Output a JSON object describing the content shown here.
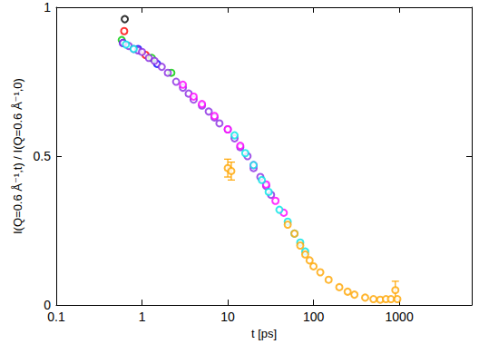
{
  "chart_data": {
    "type": "scatter",
    "x_label": "t [ps]",
    "y_label": "I(Q=0.6 Å⁻¹,t) / I(Q=0.6 Å⁻¹,0)",
    "log": "x",
    "grid": false,
    "marker": "open circle",
    "xlim": [
      0.1,
      7000
    ],
    "xticks": [
      0.1,
      1,
      10,
      100,
      1000
    ],
    "ylim": [
      0,
      1
    ],
    "yticks": [
      0,
      0.5,
      1
    ],
    "series": [
      {
        "color": "#000000",
        "x": [
          0.63
        ],
        "values": [
          0.96
        ]
      },
      {
        "color": "#ff0000",
        "x": [
          0.62,
          1.1
        ],
        "values": [
          0.92,
          0.84
        ]
      },
      {
        "color": "#00cc00",
        "x": [
          0.58,
          1.3,
          2.2
        ],
        "values": [
          0.89,
          0.83,
          0.78
        ]
      },
      {
        "color": "#0000ff",
        "x": [
          0.6,
          0.9,
          1.5
        ],
        "values": [
          0.88,
          0.86,
          0.81
        ]
      },
      {
        "color": "#8a2be2",
        "x": [
          0.6,
          0.7,
          0.8,
          0.9,
          1,
          1.2,
          1.4,
          1.7,
          2,
          2.5,
          3,
          3.5,
          4,
          5,
          6,
          7,
          8,
          10,
          12,
          14,
          17,
          20,
          24,
          28,
          32
        ],
        "values": [
          0.88,
          0.87,
          0.86,
          0.855,
          0.85,
          0.83,
          0.82,
          0.8,
          0.78,
          0.75,
          0.73,
          0.71,
          0.69,
          0.67,
          0.65,
          0.63,
          0.61,
          0.59,
          0.56,
          0.53,
          0.5,
          0.46,
          0.43,
          0.4,
          0.37
        ]
      },
      {
        "color": "#ff00ff",
        "x": [
          3,
          4,
          5,
          7,
          10,
          14,
          20,
          28,
          36,
          45
        ],
        "values": [
          0.74,
          0.7,
          0.675,
          0.635,
          0.59,
          0.535,
          0.47,
          0.405,
          0.35,
          0.31
        ]
      },
      {
        "color": "#00e5e5",
        "x": [
          0.65,
          0.8,
          12,
          16,
          20,
          25,
          30,
          40,
          50,
          60,
          70,
          80
        ],
        "values": [
          0.875,
          0.86,
          0.57,
          0.51,
          0.47,
          0.42,
          0.38,
          0.32,
          0.28,
          0.24,
          0.21,
          0.18
        ]
      },
      {
        "color": "#ffa500",
        "x": [
          10,
          11,
          50,
          60,
          70,
          80,
          90,
          100,
          120,
          150,
          200,
          250,
          300,
          400,
          500,
          600,
          700,
          800,
          900,
          950
        ],
        "values": [
          0.46,
          0.45,
          0.27,
          0.24,
          0.2,
          0.17,
          0.15,
          0.13,
          0.11,
          0.085,
          0.06,
          0.045,
          0.035,
          0.025,
          0.02,
          0.018,
          0.02,
          0.02,
          0.05,
          0.02
        ],
        "errors": [
          0.03,
          0.03,
          null,
          null,
          null,
          null,
          null,
          null,
          null,
          null,
          null,
          null,
          null,
          null,
          null,
          null,
          null,
          null,
          0.03,
          null
        ]
      }
    ]
  }
}
